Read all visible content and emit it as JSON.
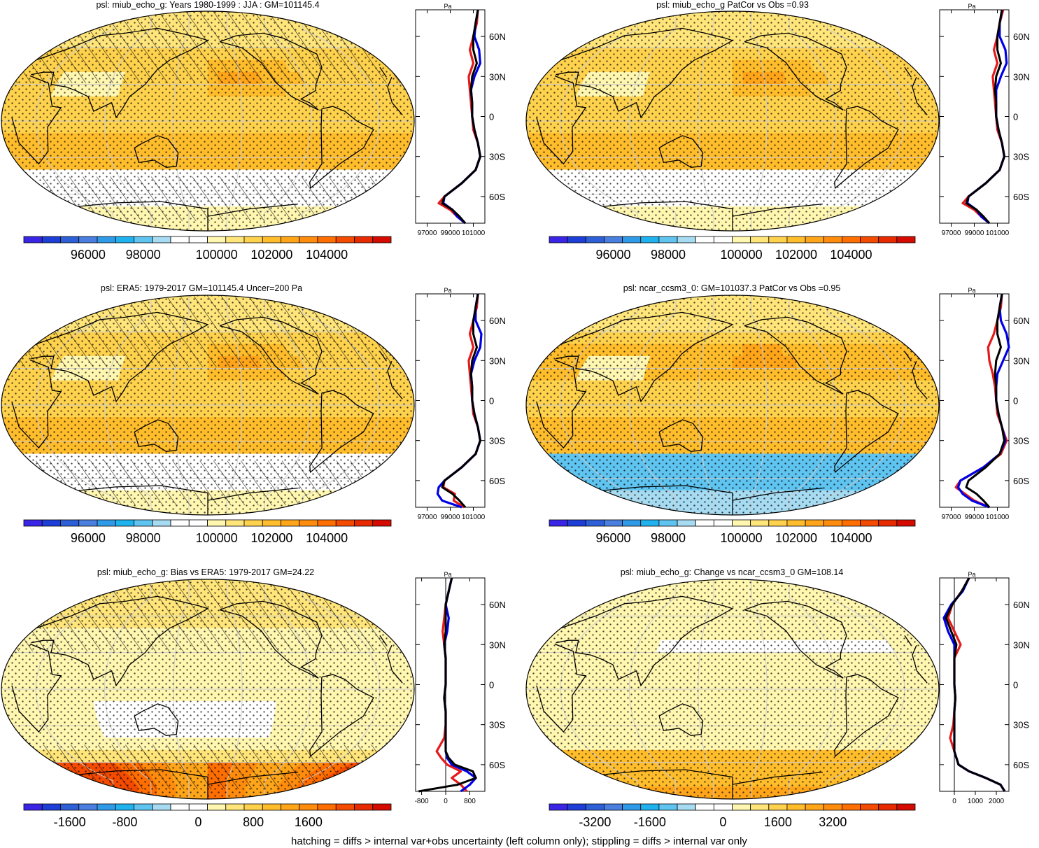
{
  "figure": {
    "footnote": "hatching = diffs > internal var+obs uncertainty (left column only); stippling = diffs > internal var only"
  },
  "colorbars": {
    "absolute": {
      "ticks": [
        "96000",
        "98000",
        "100000",
        "102000",
        "104000"
      ],
      "range": [
        94500,
        105500
      ]
    },
    "bias": {
      "ticks": [
        "-1600",
        "-800",
        "0",
        "800",
        "1600"
      ],
      "range": [
        -2400,
        2400
      ]
    },
    "change": {
      "ticks": [
        "-3200",
        "-1600",
        "0",
        "1600",
        "3200"
      ],
      "range": [
        -4800,
        4800
      ]
    },
    "colors": [
      "#3a25e6",
      "#1e3ed8",
      "#2d5fd7",
      "#4a7fe0",
      "#2f9be8",
      "#1fb2ee",
      "#5fc4f0",
      "#a6dbf2",
      "#ffffff",
      "#ffffff",
      "#fff6b0",
      "#ffe57a",
      "#ffd24d",
      "#ffbd2c",
      "#ffa51a",
      "#ff8c0d",
      "#ff6e00",
      "#f44b00",
      "#e82a00",
      "#d60b00"
    ]
  },
  "colors": {
    "model": "#e41a1c",
    "ensemble": "#0000e6",
    "obs": "#000000",
    "land": "#000000",
    "grid": "#cccccc"
  },
  "chart_data": [
    {
      "type": "heatmap",
      "title": "psl: miub_echo_g: Years 1980-1999 : JJA : GM=101145.4",
      "colorbar": "absolute",
      "field": "abs",
      "hatching": true,
      "stippling": true,
      "profile": {
        "unit": "Pa",
        "xticks": [
          "97000",
          "99000",
          "101000"
        ],
        "yticks": [
          "60N",
          "30N",
          "0",
          "30S",
          "60S"
        ],
        "xlim": [
          96000,
          102000
        ],
        "lat": [
          80,
          70,
          60,
          50,
          40,
          30,
          20,
          10,
          0,
          -10,
          -20,
          -30,
          -40,
          -50,
          -60,
          -65,
          -70,
          -75,
          -80
        ],
        "model": [
          101400,
          101300,
          101000,
          100700,
          101000,
          100600,
          100700,
          100800,
          100900,
          101000,
          101400,
          101600,
          101200,
          100000,
          98500,
          98000,
          99000,
          99600,
          100300
        ],
        "ensemble": [
          101400,
          101200,
          101100,
          101500,
          101600,
          101100,
          100800,
          100900,
          100900,
          101100,
          101400,
          101600,
          101200,
          100000,
          98500,
          98400,
          99200,
          99600,
          100300
        ],
        "obs": [
          101400,
          101200,
          101000,
          101000,
          101300,
          100900,
          100800,
          100900,
          100900,
          101100,
          101400,
          101600,
          101200,
          100000,
          98500,
          98300,
          99200,
          99800,
          100300
        ]
      }
    },
    {
      "type": "heatmap",
      "title": "psl: miub_echo_g PatCor vs Obs =0.93",
      "colorbar": "absolute",
      "field": "abs",
      "hatching": false,
      "stippling": true,
      "profile": {
        "unit": "Pa",
        "xticks": [
          "97000",
          "99000",
          "101000"
        ],
        "yticks": [
          "60N",
          "30N",
          "0",
          "30S",
          "60S"
        ],
        "xlim": [
          96000,
          102000
        ],
        "lat": [
          80,
          70,
          60,
          50,
          40,
          30,
          20,
          10,
          0,
          -10,
          -20,
          -30,
          -40,
          -50,
          -60,
          -65,
          -70,
          -75,
          -80
        ],
        "model": [
          101500,
          101200,
          101000,
          100700,
          101000,
          100600,
          100700,
          100800,
          100900,
          101000,
          101400,
          101600,
          101200,
          100000,
          98500,
          98000,
          99000,
          99600,
          100300
        ],
        "ensemble": [
          101400,
          101200,
          101200,
          101700,
          101800,
          101300,
          100900,
          100900,
          100900,
          101100,
          101400,
          101600,
          101200,
          100000,
          98500,
          98400,
          99200,
          99600,
          100300
        ],
        "obs": [
          101400,
          101200,
          101000,
          101000,
          101300,
          100900,
          100800,
          100900,
          100900,
          101100,
          101400,
          101600,
          101200,
          100000,
          98500,
          98300,
          99200,
          99800,
          100300
        ]
      }
    },
    {
      "type": "heatmap",
      "title": "psl: ERA5: 1979-2017 GM=101145.4 Uncer=200 Pa",
      "colorbar": "absolute",
      "field": "obs",
      "hatching": true,
      "stippling": true,
      "profile": {
        "unit": "Pa",
        "xticks": [
          "97000",
          "99000",
          "101000"
        ],
        "yticks": [
          "60N",
          "30N",
          "0",
          "30S",
          "60S"
        ],
        "xlim": [
          96000,
          102000
        ],
        "lat": [
          80,
          70,
          60,
          50,
          40,
          30,
          20,
          10,
          0,
          -10,
          -20,
          -30,
          -40,
          -50,
          -60,
          -65,
          -70,
          -75,
          -80
        ],
        "model": [
          101400,
          101300,
          101000,
          100700,
          101000,
          100600,
          100700,
          100800,
          100900,
          101000,
          101400,
          101600,
          101200,
          100000,
          98500,
          98400,
          99400,
          99300,
          100200
        ],
        "ensemble": [
          101400,
          101200,
          101200,
          101700,
          101600,
          101100,
          100800,
          100900,
          100900,
          101100,
          101400,
          101600,
          101200,
          100000,
          98500,
          98000,
          97900,
          98300,
          100000
        ],
        "obs": [
          101400,
          101200,
          101000,
          101000,
          101300,
          100900,
          100800,
          100900,
          100900,
          101100,
          101400,
          101600,
          101200,
          100000,
          98500,
          98300,
          99200,
          99800,
          100300
        ]
      }
    },
    {
      "type": "heatmap",
      "title": "psl: ncar_ccsm3_0: GM=101037.3 PatCor vs Obs =0.95",
      "colorbar": "absolute",
      "field": "abs2",
      "hatching": false,
      "stippling": true,
      "profile": {
        "unit": "Pa",
        "xticks": [
          "97000",
          "99000",
          "101000"
        ],
        "yticks": [
          "60N",
          "30N",
          "0",
          "30S",
          "60S"
        ],
        "xlim": [
          96000,
          102000
        ],
        "lat": [
          80,
          70,
          60,
          50,
          40,
          30,
          20,
          10,
          0,
          -10,
          -20,
          -30,
          -40,
          -50,
          -60,
          -65,
          -70,
          -75,
          -80
        ],
        "model": [
          101400,
          101300,
          101000,
          100700,
          100200,
          100300,
          100600,
          100800,
          100900,
          101000,
          101400,
          101800,
          101300,
          99800,
          97800,
          97400,
          98200,
          99000,
          100300
        ],
        "ensemble": [
          101400,
          101200,
          101300,
          101800,
          102000,
          101500,
          101000,
          100900,
          100900,
          101100,
          101400,
          101700,
          101200,
          99800,
          97800,
          97600,
          98000,
          98800,
          100300
        ],
        "obs": [
          101400,
          101200,
          101000,
          101000,
          101300,
          100900,
          100800,
          100900,
          100900,
          101100,
          101400,
          101600,
          101200,
          100000,
          98500,
          98300,
          99200,
          99800,
          100300
        ]
      }
    },
    {
      "type": "heatmap",
      "title": "psl: miub_echo_g: Bias vs ERA5: 1979-2017 GM=24.22",
      "colorbar": "bias",
      "field": "bias",
      "hatching": true,
      "stippling": true,
      "profile": {
        "unit": "Pa",
        "xticks": [
          "-800",
          "0",
          "800"
        ],
        "yticks": [
          "60N",
          "30N",
          "0",
          "30S",
          "60S"
        ],
        "xlim": [
          -1000,
          1300
        ],
        "zero": 0,
        "lat": [
          80,
          70,
          60,
          50,
          40,
          30,
          20,
          10,
          0,
          -10,
          -20,
          -30,
          -40,
          -50,
          -55,
          -60,
          -65,
          -70,
          -75,
          -80
        ],
        "model": [
          200,
          100,
          0,
          -50,
          -100,
          -50,
          0,
          0,
          0,
          -50,
          0,
          0,
          -50,
          -300,
          -150,
          50,
          500,
          200,
          500,
          700
        ],
        "ensemble": [
          200,
          100,
          0,
          100,
          50,
          -50,
          0,
          0,
          0,
          -50,
          0,
          0,
          0,
          0,
          50,
          200,
          700,
          1000,
          800,
          500
        ],
        "obs": [
          200,
          100,
          0,
          0,
          0,
          -50,
          0,
          0,
          0,
          -50,
          0,
          0,
          0,
          0,
          100,
          300,
          900,
          1000,
          400,
          -900
        ]
      }
    },
    {
      "type": "heatmap",
      "title": "psl: miub_echo_g: Change vs ncar_ccsm3_0 GM=108.14",
      "colorbar": "change",
      "field": "change",
      "hatching": false,
      "stippling": true,
      "profile": {
        "unit": "Pa",
        "xticks": [
          "0",
          "1000",
          "2000"
        ],
        "yticks": [
          "60N",
          "30N",
          "0",
          "30S",
          "60S"
        ],
        "xlim": [
          -700,
          2600
        ],
        "zero": 0,
        "lat": [
          80,
          70,
          60,
          50,
          40,
          30,
          20,
          10,
          0,
          -10,
          -20,
          -30,
          -40,
          -50,
          -60,
          -65,
          -70,
          -75,
          -80
        ],
        "model": [
          700,
          350,
          -100,
          -300,
          0,
          300,
          0,
          0,
          0,
          50,
          0,
          -50,
          -200,
          0,
          200,
          700,
          1500,
          2200,
          2400
        ],
        "ensemble": [
          700,
          400,
          -150,
          -500,
          -300,
          0,
          0,
          0,
          0,
          50,
          0,
          0,
          0,
          0,
          200,
          700,
          1500,
          2200,
          2400
        ],
        "obs": [
          700,
          350,
          -100,
          -400,
          -150,
          100,
          0,
          0,
          0,
          50,
          0,
          0,
          0,
          0,
          200,
          700,
          1500,
          2200,
          2400
        ]
      }
    }
  ]
}
